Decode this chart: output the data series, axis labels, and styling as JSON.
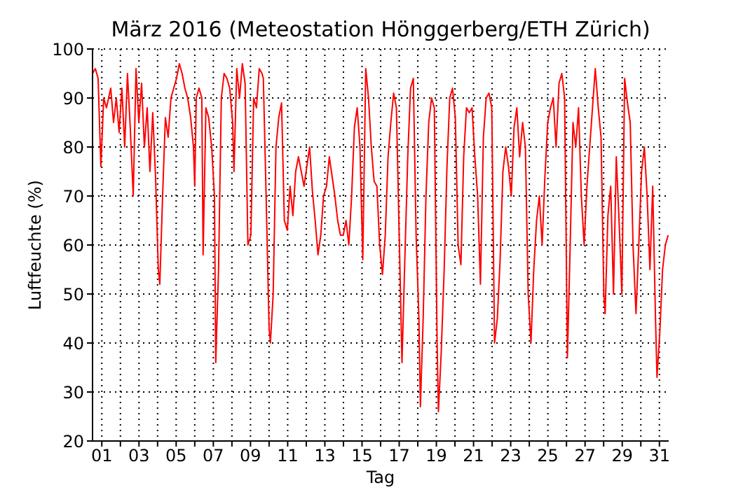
{
  "chart_data": {
    "type": "line",
    "title": "März 2016  (Meteostation Hönggerberg/ETH Zürich)",
    "xlabel": "Tag",
    "ylabel": "Luftfeuchte (%)",
    "x": [
      1.0,
      1.15,
      1.3,
      1.45,
      1.6,
      1.75,
      1.98,
      2.13,
      2.28,
      2.43,
      2.58,
      2.73,
      2.88,
      3.03,
      3.19,
      3.34,
      3.49,
      3.64,
      3.79,
      3.94,
      4.09,
      4.24,
      4.39,
      4.54,
      4.62,
      4.77,
      4.92,
      5.07,
      5.22,
      5.37,
      5.52,
      5.67,
      5.82,
      5.97,
      6.12,
      6.28,
      6.43,
      6.5,
      6.58,
      6.73,
      6.88,
      6.95,
      7.1,
      7.25,
      7.41,
      7.56,
      7.63,
      7.78,
      7.93,
      8.08,
      8.23,
      8.38,
      8.54,
      8.61,
      8.76,
      8.91,
      9.06,
      9.21,
      9.36,
      9.52,
      9.67,
      9.82,
      9.97,
      10.12,
      10.19,
      10.34,
      10.5,
      10.57,
      10.72,
      10.87,
      11.02,
      11.17,
      11.32,
      11.48,
      11.63,
      11.78,
      11.93,
      12.08,
      12.23,
      12.38,
      12.53,
      12.68,
      12.83,
      12.98,
      13.13,
      13.28,
      13.43,
      13.59,
      13.74,
      13.89,
      14.04,
      14.19,
      14.34,
      14.49,
      14.64,
      14.79,
      14.94,
      15.09,
      15.24,
      15.39,
      15.54,
      15.7,
      15.85,
      16.0,
      16.15,
      16.3,
      16.45,
      16.6,
      16.75,
      16.9,
      17.05,
      17.2,
      17.35,
      17.5,
      17.65,
      17.81,
      17.96,
      18.11,
      18.26,
      18.41,
      18.56,
      18.64,
      18.79,
      18.94,
      19.09,
      19.24,
      19.39,
      19.54,
      19.61,
      19.76,
      19.92,
      20.07,
      20.22,
      20.37,
      20.52,
      20.67,
      20.82,
      20.97,
      21.12,
      21.27,
      21.42,
      21.57,
      21.72,
      21.87,
      22.03,
      22.18,
      22.33,
      22.48,
      22.63,
      22.78,
      22.93,
      23.08,
      23.23,
      23.38,
      23.53,
      23.68,
      23.83,
      23.98,
      24.14,
      24.29,
      24.44,
      24.59,
      24.74,
      24.89,
      25.04,
      25.19,
      25.34,
      25.49,
      25.64,
      25.79,
      25.94,
      26.1,
      26.25,
      26.4,
      26.55,
      26.7,
      26.85,
      27.0,
      27.15,
      27.3,
      27.45,
      27.6,
      27.75,
      27.9,
      28.05,
      28.21,
      28.36,
      28.51,
      28.58,
      28.73,
      28.88,
      29.03,
      29.18,
      29.33,
      29.48,
      29.63,
      29.78,
      29.93,
      30.08,
      30.24,
      30.39,
      30.54,
      30.69,
      30.84,
      30.99,
      31.14,
      31.29,
      31.37,
      31.52,
      31.67,
      31.82,
      31.97
    ],
    "series": [
      {
        "color": "#ff0000",
        "values": [
          95,
          96,
          94,
          76,
          90,
          88,
          92,
          85,
          90,
          83,
          92,
          80,
          95,
          84,
          70,
          96,
          85,
          93,
          80,
          88,
          75,
          87,
          74,
          55,
          52,
          70,
          86,
          82,
          90,
          92,
          94,
          97,
          95,
          92,
          90,
          86,
          80,
          72,
          90,
          92,
          90,
          58,
          88,
          86,
          80,
          70,
          36,
          55,
          90,
          95,
          94,
          92,
          85,
          75,
          96,
          90,
          97,
          93,
          60,
          62,
          90,
          88,
          96,
          95,
          94,
          70,
          43,
          40,
          50,
          80,
          86,
          89,
          65,
          63,
          72,
          66,
          75,
          78,
          75,
          72,
          76,
          80,
          71,
          65,
          58,
          62,
          70,
          72,
          78,
          74,
          70,
          65,
          62,
          62,
          65,
          60,
          70,
          84,
          88,
          80,
          57,
          96,
          90,
          80,
          73,
          72,
          60,
          54,
          62,
          78,
          85,
          91,
          88,
          62,
          36,
          58,
          78,
          92,
          94,
          62,
          45,
          27,
          45,
          70,
          85,
          90,
          88,
          40,
          26,
          38,
          55,
          76,
          90,
          92,
          86,
          60,
          56,
          78,
          88,
          87,
          88,
          78,
          70,
          52,
          82,
          90,
          91,
          88,
          40,
          45,
          57,
          75,
          80,
          76,
          70,
          84,
          88,
          78,
          85,
          80,
          50,
          40,
          55,
          65,
          70,
          60,
          74,
          85,
          88,
          90,
          80,
          93,
          95,
          90,
          37,
          60,
          85,
          80,
          88,
          70,
          60,
          72,
          80,
          88,
          96,
          88,
          82,
          50,
          46,
          66,
          72,
          50,
          78,
          65,
          50,
          94,
          89,
          85,
          60,
          46,
          60,
          75,
          80,
          70,
          55,
          72,
          45,
          33,
          42,
          55,
          60,
          62
        ]
      }
    ],
    "xlim": [
      1,
      32
    ],
    "xticks": [
      {
        "value": 1.5,
        "label": "01"
      },
      {
        "value": 2.5,
        "label": null
      },
      {
        "value": 3.5,
        "label": "03"
      },
      {
        "value": 4.5,
        "label": null
      },
      {
        "value": 5.5,
        "label": "05"
      },
      {
        "value": 6.5,
        "label": null
      },
      {
        "value": 7.5,
        "label": "07"
      },
      {
        "value": 8.5,
        "label": null
      },
      {
        "value": 9.5,
        "label": "09"
      },
      {
        "value": 10.5,
        "label": null
      },
      {
        "value": 11.5,
        "label": "11"
      },
      {
        "value": 12.5,
        "label": null
      },
      {
        "value": 13.5,
        "label": "13"
      },
      {
        "value": 14.5,
        "label": null
      },
      {
        "value": 15.5,
        "label": "15"
      },
      {
        "value": 16.5,
        "label": null
      },
      {
        "value": 17.5,
        "label": "17"
      },
      {
        "value": 18.5,
        "label": null
      },
      {
        "value": 19.5,
        "label": "19"
      },
      {
        "value": 20.5,
        "label": null
      },
      {
        "value": 21.5,
        "label": "21"
      },
      {
        "value": 22.5,
        "label": null
      },
      {
        "value": 23.5,
        "label": "23"
      },
      {
        "value": 24.5,
        "label": null
      },
      {
        "value": 25.5,
        "label": "25"
      },
      {
        "value": 26.5,
        "label": null
      },
      {
        "value": 27.5,
        "label": "27"
      },
      {
        "value": 28.5,
        "label": null
      },
      {
        "value": 29.5,
        "label": "29"
      },
      {
        "value": 30.5,
        "label": null
      },
      {
        "value": 31.5,
        "label": "31"
      }
    ],
    "ylim": [
      20,
      100
    ],
    "yticks": [
      20,
      30,
      40,
      50,
      60,
      70,
      80,
      90,
      100
    ],
    "grid": true,
    "legend": false,
    "marker": "none",
    "line_style": "solid"
  }
}
